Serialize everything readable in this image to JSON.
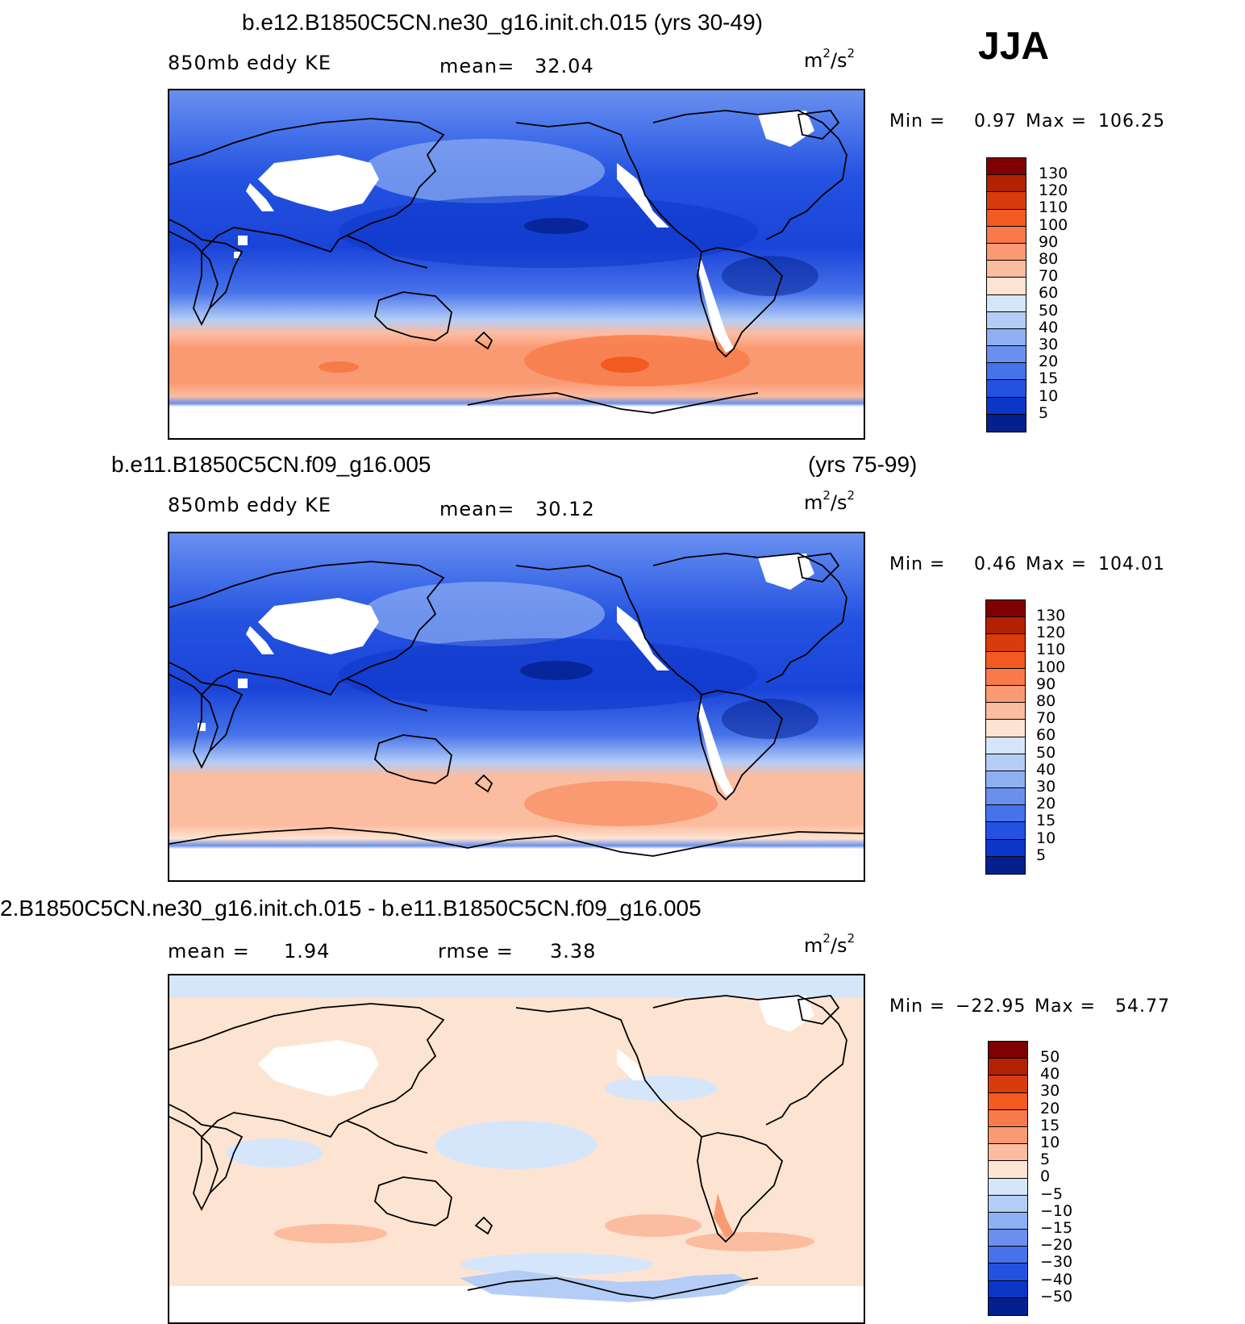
{
  "season": "JJA",
  "panels": [
    {
      "title": "b.e12.B1850C5CN.ne30_g16.init.ch.015 (yrs 30-49)",
      "variable": "850mb eddy KE",
      "mean_label": "mean=",
      "mean_value": "32.04",
      "units_base": "m",
      "units_exp1": "2",
      "units_mid": "/s",
      "units_exp2": "2",
      "min_label": "Min =",
      "min_value": "0.97",
      "max_label": "Max =",
      "max_value": "106.25",
      "colorbar": {
        "labels": [
          "130",
          "120",
          "110",
          "100",
          "90",
          "80",
          "70",
          "60",
          "50",
          "40",
          "30",
          "20",
          "15",
          "10",
          "5"
        ],
        "colors": [
          "#7f0000",
          "#b22200",
          "#d83c0c",
          "#f25a22",
          "#f87a4a",
          "#fa9a72",
          "#fcbca0",
          "#fde4d2",
          "#d6e6fa",
          "#b4cdf6",
          "#8eaff2",
          "#6a90ee",
          "#4672ea",
          "#2452e0",
          "#0c36c8",
          "#04208e"
        ]
      }
    },
    {
      "title": "b.e11.B1850C5CN.f09_g16.005",
      "title_years": "(yrs 75-99)",
      "variable": "850mb eddy KE",
      "mean_label": "mean=",
      "mean_value": "30.12",
      "units_base": "m",
      "units_exp1": "2",
      "units_mid": "/s",
      "units_exp2": "2",
      "min_label": "Min =",
      "min_value": "0.46",
      "max_label": "Max =",
      "max_value": "104.01",
      "colorbar": {
        "labels": [
          "130",
          "120",
          "110",
          "100",
          "90",
          "80",
          "70",
          "60",
          "50",
          "40",
          "30",
          "20",
          "15",
          "10",
          "5"
        ],
        "colors": [
          "#7f0000",
          "#b22200",
          "#d83c0c",
          "#f25a22",
          "#f87a4a",
          "#fa9a72",
          "#fcbca0",
          "#fde4d2",
          "#d6e6fa",
          "#b4cdf6",
          "#8eaff2",
          "#6a90ee",
          "#4672ea",
          "#2452e0",
          "#0c36c8",
          "#04208e"
        ]
      }
    },
    {
      "title": "2.B1850C5CN.ne30_g16.init.ch.015 - b.e11.B1850C5CN.f09_g16.005",
      "mean_label": "mean =",
      "mean_value": "1.94",
      "rmse_label": "rmse =",
      "rmse_value": "3.38",
      "units_base": "m",
      "units_exp1": "2",
      "units_mid": "/s",
      "units_exp2": "2",
      "min_label": "Min =",
      "min_value": "−22.95",
      "max_label": "Max =",
      "max_value": "54.77",
      "colorbar": {
        "labels": [
          "50",
          "40",
          "30",
          "20",
          "15",
          "10",
          "5",
          "0",
          "−5",
          "−10",
          "−15",
          "−20",
          "−30",
          "−40",
          "−50"
        ],
        "colors": [
          "#7f0000",
          "#b22200",
          "#d83c0c",
          "#f25a22",
          "#f87a4a",
          "#fa9a72",
          "#fcbca0",
          "#fde4d2",
          "#d6e6fa",
          "#b4cdf6",
          "#8eaff2",
          "#6a90ee",
          "#4672ea",
          "#2452e0",
          "#0c36c8",
          "#04208e"
        ]
      }
    }
  ]
}
